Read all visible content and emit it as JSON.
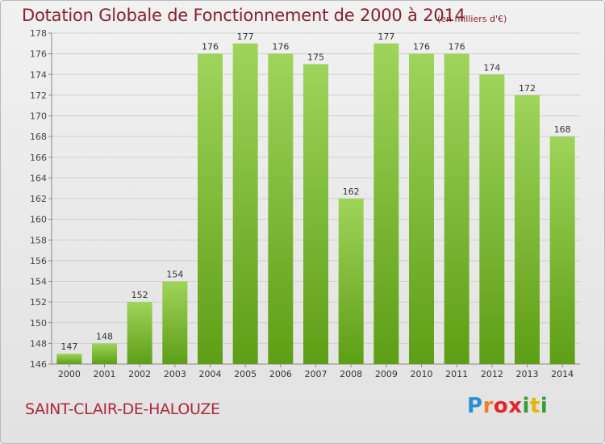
{
  "header": {
    "title": "Dotation Globale de Fonctionnement de 2000 à 2014",
    "subtitle": "(en milliers d'€)"
  },
  "footer": {
    "commune": "SAINT-CLAIR-DE-HALOUZE",
    "logo_text": "Proxiti"
  },
  "colors": {
    "title": "#8a1f2f",
    "commune": "#b0273a",
    "bar_top": "#9ed45a",
    "bar_bottom": "#5e9e16"
  },
  "chart_data": {
    "type": "bar",
    "title": "Dotation Globale de Fonctionnement de 2000 à 2014",
    "subtitle": "(en milliers d'€)",
    "xlabel": "",
    "ylabel": "",
    "categories": [
      "2000",
      "2001",
      "2002",
      "2003",
      "2004",
      "2005",
      "2006",
      "2007",
      "2008",
      "2009",
      "2010",
      "2011",
      "2012",
      "2013",
      "2014"
    ],
    "values": [
      147,
      148,
      152,
      154,
      176,
      177,
      176,
      175,
      162,
      177,
      176,
      176,
      174,
      172,
      168
    ],
    "ylim": [
      146,
      178
    ],
    "yticks": [
      146,
      148,
      150,
      152,
      154,
      156,
      158,
      160,
      162,
      164,
      166,
      168,
      170,
      172,
      174,
      176,
      178
    ],
    "grid": true,
    "legend": "none"
  }
}
